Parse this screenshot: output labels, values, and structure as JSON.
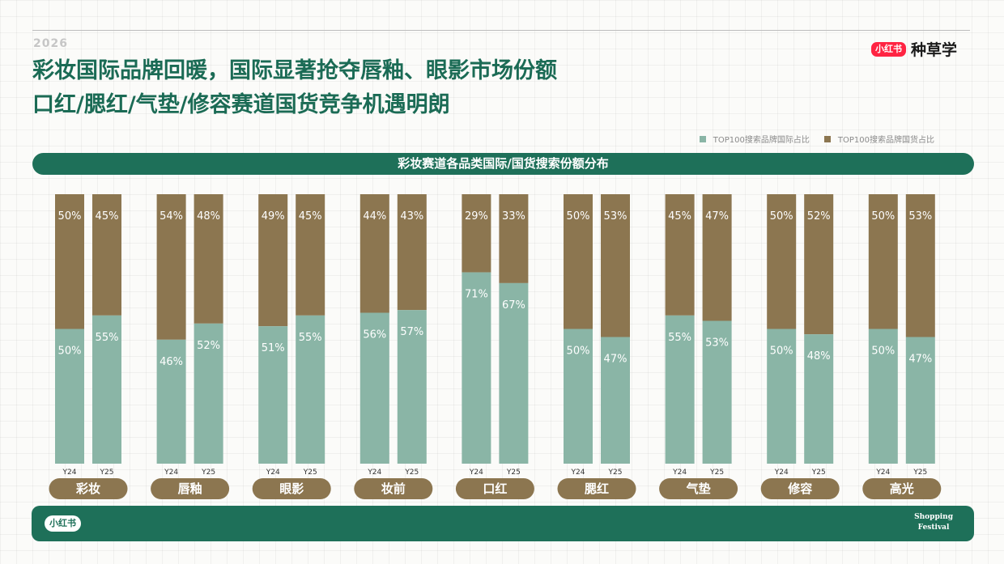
{
  "header": {
    "year": "2026",
    "brand_logo": "小红书",
    "brand_text": "种草学"
  },
  "title": {
    "line1": "彩妆国际品牌回暖，国际显著抢夺唇釉、眼影市场份额",
    "line2": "口红/腮红/气垫/修容赛道国货竞争机遇明朗"
  },
  "footer": {
    "logo": "小红书",
    "line1": "Shopping",
    "line2": "Festival"
  },
  "colors": {
    "international": "#8ab5a6",
    "domestic": "#8c7650",
    "primary": "#1e7059"
  },
  "chart_data": {
    "type": "bar",
    "stacked": true,
    "title": "彩妆赛道各品类国际/国货搜索份额分布",
    "categories": [
      "彩妆",
      "唇釉",
      "眼影",
      "妆前",
      "口红",
      "腮红",
      "气垫",
      "修容",
      "高光"
    ],
    "bar_labels": [
      "Y24",
      "Y25"
    ],
    "ylim": [
      0,
      100
    ],
    "series": [
      {
        "name": "TOP100搜索品牌国际占比",
        "color": "#8ab5a6",
        "values": [
          [
            50,
            55
          ],
          [
            46,
            52
          ],
          [
            51,
            55
          ],
          [
            56,
            57
          ],
          [
            71,
            67
          ],
          [
            50,
            47
          ],
          [
            55,
            53
          ],
          [
            50,
            48
          ],
          [
            50,
            47
          ]
        ]
      },
      {
        "name": "TOP100搜索品牌国货占比",
        "color": "#8c7650",
        "values": [
          [
            50,
            45
          ],
          [
            54,
            48
          ],
          [
            49,
            45
          ],
          [
            44,
            43
          ],
          [
            29,
            33
          ],
          [
            50,
            53
          ],
          [
            45,
            47
          ],
          [
            50,
            52
          ],
          [
            50,
            53
          ]
        ]
      }
    ],
    "grid": false,
    "legend_position": "top-right"
  }
}
